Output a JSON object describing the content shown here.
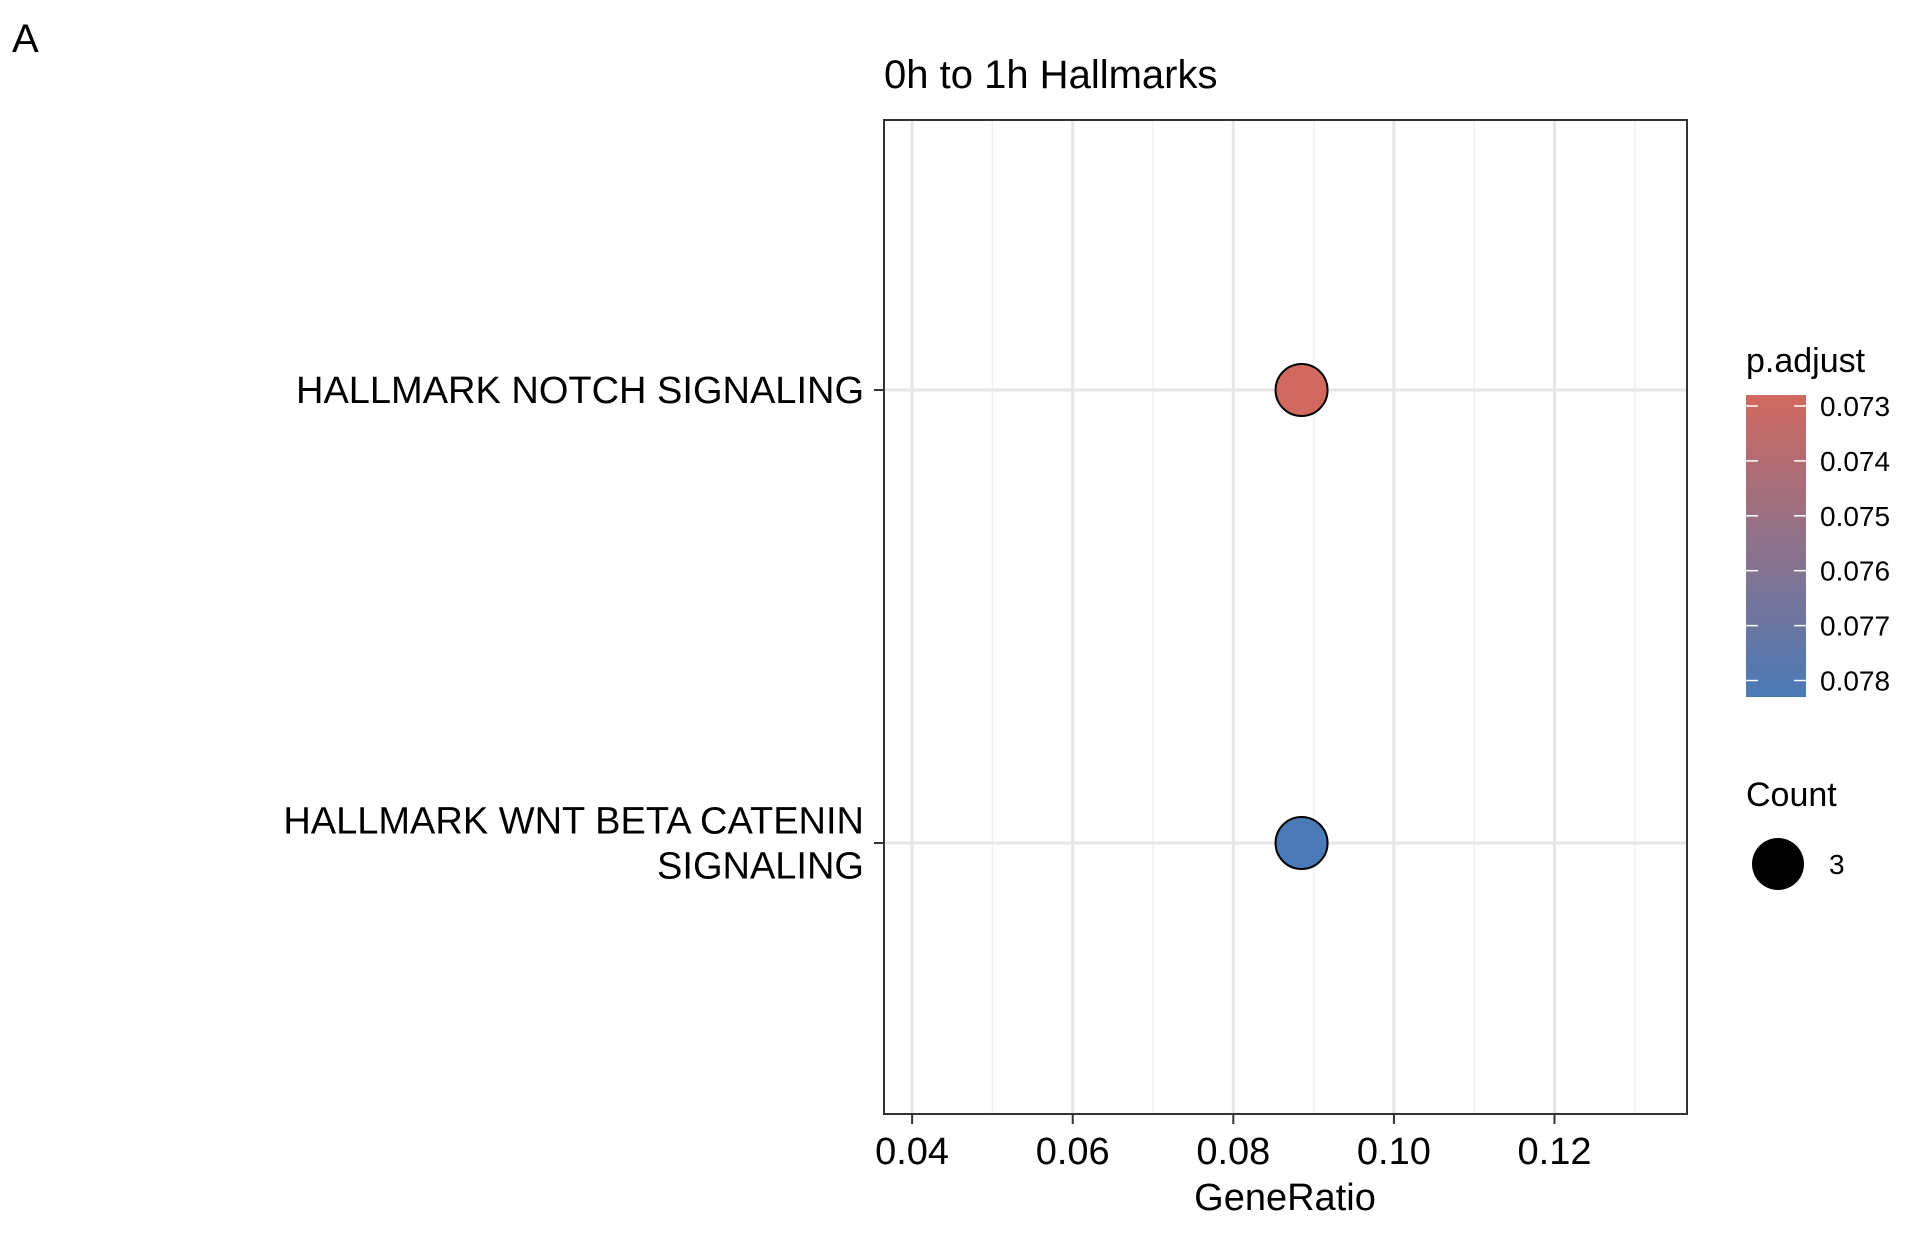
{
  "panel_label": "A",
  "chart_data": {
    "type": "scatter",
    "title": "0h to 1h Hallmarks",
    "xlabel": "GeneRatio",
    "ylabel": "",
    "xlim": [
      0.0365,
      0.1365
    ],
    "x_ticks": [
      0.04,
      0.06,
      0.08,
      0.1,
      0.12
    ],
    "x_tick_labels": [
      "0.04",
      "0.06",
      "0.08",
      "0.10",
      "0.12"
    ],
    "grid": true,
    "categories": [
      {
        "lines": [
          "HALLMARK NOTCH SIGNALING"
        ]
      },
      {
        "lines": [
          "HALLMARK WNT BETA CATENIN",
          "SIGNALING"
        ]
      }
    ],
    "points": [
      {
        "category_index": 0,
        "gene_ratio": 0.0885,
        "p_adjust": 0.0728,
        "count": 3
      },
      {
        "category_index": 1,
        "gene_ratio": 0.0885,
        "p_adjust": 0.0783,
        "count": 3
      }
    ],
    "legend": {
      "position": "right",
      "color": {
        "title": "p.adjust",
        "range": [
          0.0728,
          0.0783
        ],
        "low_color": "#d1695f",
        "high_color": "#4a7ab7",
        "ticks": [
          "0.073",
          "0.074",
          "0.075",
          "0.076",
          "0.077",
          "0.078"
        ]
      },
      "size": {
        "title": "Count",
        "items": [
          {
            "value": 3,
            "label": "3"
          }
        ]
      }
    }
  }
}
